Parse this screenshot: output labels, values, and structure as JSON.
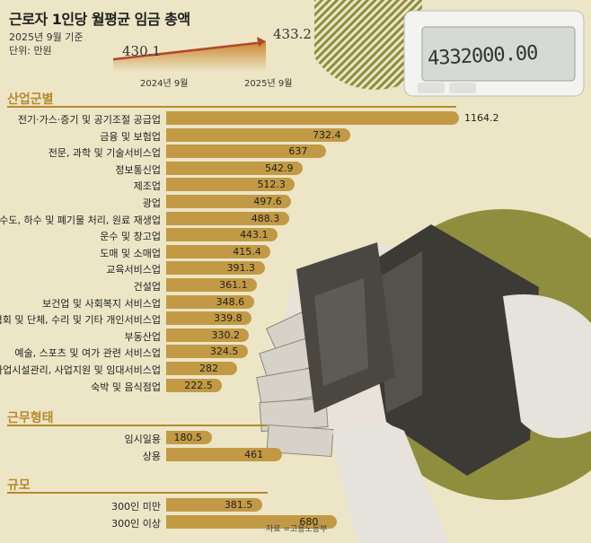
{
  "header": {
    "title": "근로자 1인당 월평균 임금 총액",
    "date_note": "2025년 9월 기준",
    "unit_note": "단위: 만원"
  },
  "trend": {
    "points": [
      {
        "label": "2024년 9월",
        "value": 430.1
      },
      {
        "label": "2025년 9월",
        "value": 433.2
      }
    ]
  },
  "calculator": {
    "display": "4332000.00"
  },
  "source": "자료 =고용노동부",
  "colors": {
    "bar": "#c29a45",
    "accent": "#b7892e",
    "circle": "#8e8e3e",
    "background": "#ece6c6"
  },
  "chart_data": [
    {
      "type": "bar",
      "title": "산업군별",
      "categories": [
        "전기·가스·증기 및 공기조절 공급업",
        "금융 및 보험업",
        "전문, 과학 및 기술서비스업",
        "정보통신업",
        "제조업",
        "광업",
        "수도, 하수 및 폐기물 처리, 원료 재생업",
        "운수 및 창고업",
        "도매 및 소매업",
        "교육서비스업",
        "건설업",
        "보건업 및 사회복지 서비스업",
        "협회 및 단체, 수리 및 기타 개인서비스업",
        "부동산업",
        "예술, 스포츠 및 여가 관련 서비스업",
        "사업시설관리, 사업지원 및 임대서비스업",
        "숙박 및 음식점업"
      ],
      "values": [
        1164.2,
        732.4,
        637,
        542.9,
        512.3,
        497.6,
        488.3,
        443.1,
        415.4,
        391.3,
        361.1,
        348.6,
        339.8,
        330.2,
        324.5,
        282,
        222.5
      ]
    },
    {
      "type": "bar",
      "title": "근무형태",
      "categories": [
        "임시일용",
        "상용"
      ],
      "values": [
        180.5,
        461
      ]
    },
    {
      "type": "bar",
      "title": "규모",
      "categories": [
        "300인 미만",
        "300인 이상"
      ],
      "values": [
        381.5,
        680
      ]
    }
  ]
}
